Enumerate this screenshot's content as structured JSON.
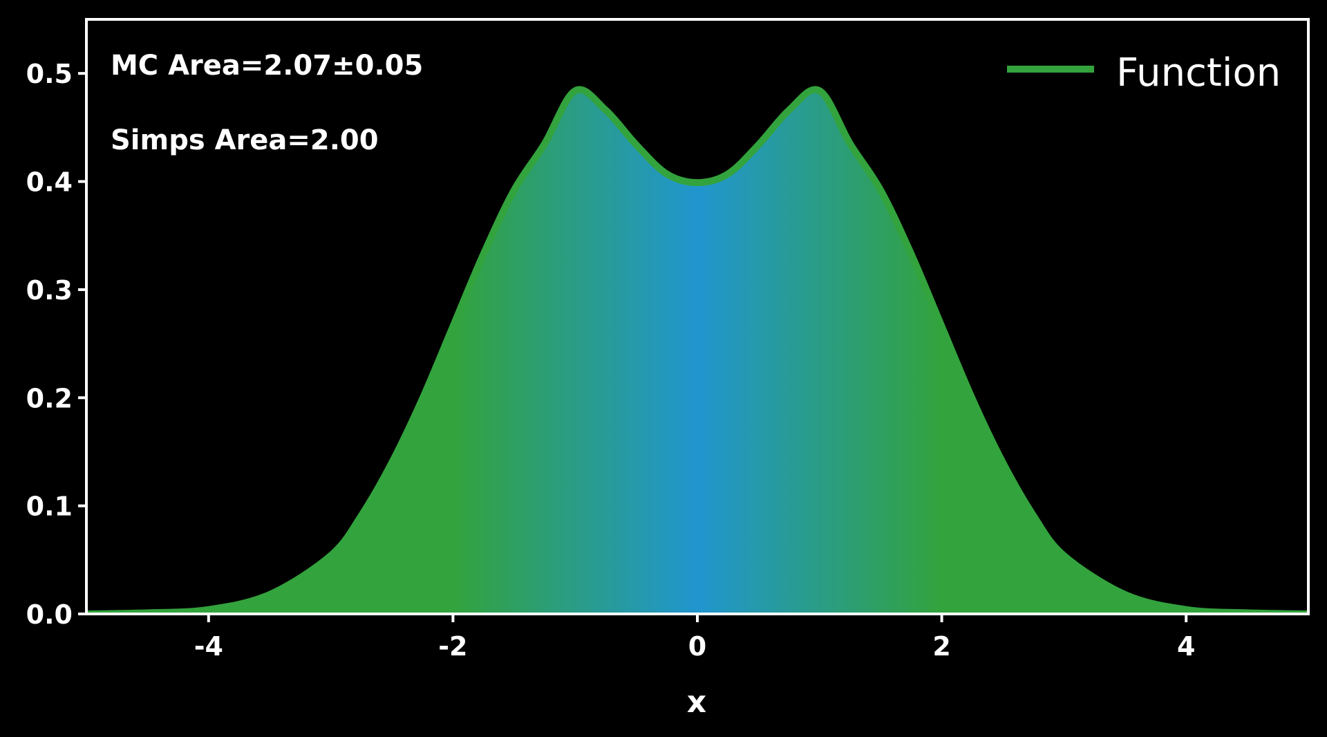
{
  "chart_data": {
    "type": "area",
    "title": "",
    "xlabel": "x",
    "ylabel": "",
    "xlim": [
      -5,
      5
    ],
    "ylim": [
      0,
      0.55
    ],
    "xticks": [
      -4,
      -2,
      0,
      2,
      4
    ],
    "xtick_labels": [
      "-4",
      "-2",
      "0",
      "2",
      "4"
    ],
    "yticks": [
      0.0,
      0.1,
      0.2,
      0.3,
      0.4,
      0.5
    ],
    "ytick_labels": [
      "0.0",
      "0.1",
      "0.2",
      "0.3",
      "0.4",
      "0.5"
    ],
    "grid": false,
    "legend": {
      "placement": "top-right",
      "entries": [
        "Function"
      ]
    },
    "annotations": [
      "MC Area=2.07±0.05",
      "Simps Area=2.00"
    ],
    "series": [
      {
        "name": "Function",
        "x": [
          -5,
          -4.5,
          -4,
          -3.5,
          -3,
          -2.75,
          -2.5,
          -2.25,
          -2,
          -1.75,
          -1.5,
          -1.25,
          -1,
          -0.75,
          -0.5,
          -0.25,
          0,
          0.25,
          0.5,
          0.75,
          1,
          1.25,
          1.5,
          1.75,
          2,
          2.25,
          2.5,
          2.75,
          3,
          3.5,
          4,
          4.5,
          5
        ],
        "y": [
          0.0,
          0.001,
          0.004,
          0.018,
          0.054,
          0.091,
          0.14,
          0.199,
          0.266,
          0.333,
          0.392,
          0.435,
          0.484,
          0.466,
          0.434,
          0.407,
          0.399,
          0.407,
          0.434,
          0.466,
          0.484,
          0.435,
          0.392,
          0.333,
          0.266,
          0.199,
          0.14,
          0.091,
          0.054,
          0.018,
          0.004,
          0.001,
          0.0
        ]
      }
    ],
    "colors": {
      "line": "#33a33d",
      "fill_center": "#2196cf",
      "fill_edge": "#33a33d",
      "axes": "#ffffff",
      "background": "#000000"
    }
  }
}
